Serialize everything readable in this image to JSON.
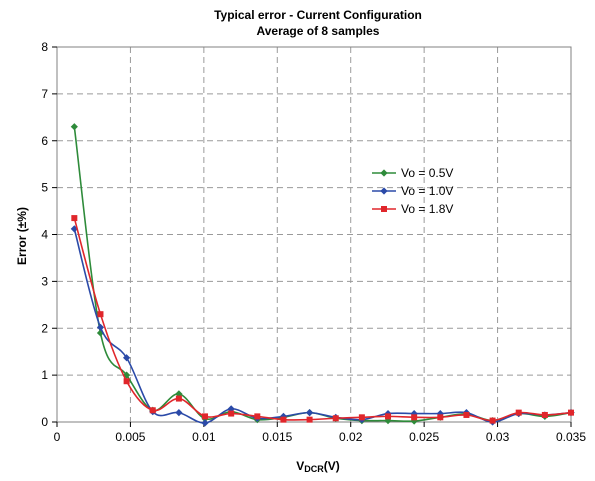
{
  "chart_data": {
    "type": "line",
    "title_line1": "Typical error - Current Configuration",
    "title_line2": "Average of 8 samples",
    "xlabel_main": "V",
    "xlabel_sub": "DCR",
    "xlabel_tail": "(V)",
    "ylabel": "Error (±%)",
    "xlim": [
      0,
      0.035
    ],
    "ylim": [
      0,
      8
    ],
    "x_ticks": [
      0,
      0.005,
      0.01,
      0.015,
      0.02,
      0.025,
      0.03,
      0.035
    ],
    "x_tick_labels": [
      "0",
      "0.005",
      "0.01",
      "0.015",
      "0.02",
      "0.025",
      "0.03",
      "0.035"
    ],
    "y_ticks": [
      0,
      1,
      2,
      3,
      4,
      5,
      6,
      7,
      8
    ],
    "y_tick_labels": [
      "0",
      "1",
      "2",
      "3",
      "4",
      "5",
      "6",
      "7",
      "8"
    ],
    "grid": true,
    "legend_position": "right-middle",
    "x": [
      0.00118,
      0.00296,
      0.00474,
      0.00652,
      0.0083,
      0.01008,
      0.01186,
      0.01364,
      0.01542,
      0.0172,
      0.01898,
      0.02076,
      0.02254,
      0.02432,
      0.0261,
      0.02788,
      0.02966,
      0.03144,
      0.03322,
      0.035
    ],
    "series": [
      {
        "name": "Vo = 0.5V",
        "color": "#2e8b3a",
        "marker": "diamond",
        "values": [
          6.3,
          1.9,
          1.0,
          0.25,
          0.6,
          0.07,
          0.22,
          0.05,
          0.1,
          0.2,
          0.08,
          0.03,
          0.03,
          0.02,
          0.1,
          0.17,
          0.03,
          0.18,
          0.12,
          0.2
        ]
      },
      {
        "name": "Vo = 1.0V",
        "color": "#2b4aa8",
        "marker": "diamond",
        "values": [
          4.12,
          2.02,
          1.37,
          0.22,
          0.2,
          -0.02,
          0.28,
          0.08,
          0.12,
          0.2,
          0.1,
          0.05,
          0.18,
          0.18,
          0.18,
          0.2,
          0.0,
          0.18,
          0.15,
          0.2
        ]
      },
      {
        "name": "Vo = 1.8V",
        "color": "#e0262b",
        "marker": "square",
        "values": [
          4.35,
          2.3,
          0.87,
          0.25,
          0.5,
          0.12,
          0.18,
          0.12,
          0.05,
          0.05,
          0.08,
          0.1,
          0.12,
          0.1,
          0.1,
          0.15,
          0.03,
          0.2,
          0.15,
          0.2
        ]
      }
    ]
  }
}
